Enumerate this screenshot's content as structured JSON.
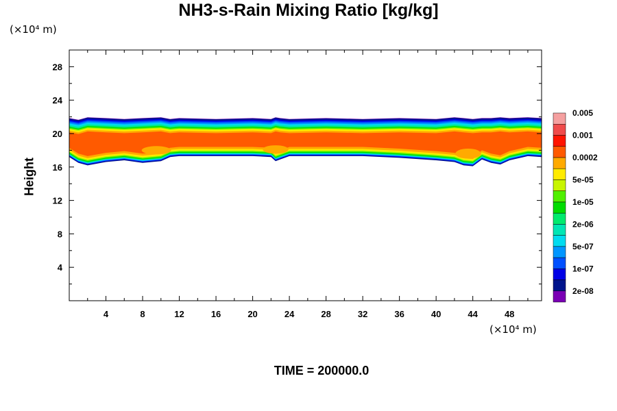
{
  "chart_data": {
    "type": "heatmap",
    "title": "NH3-s-Rain Mixing Ratio [kg/kg]",
    "ylabel": "Height",
    "xlabel": "",
    "x_unit": "(×10⁴ m)",
    "y_unit": "(×10⁴ m)",
    "xlim": [
      0,
      51.5
    ],
    "ylim": [
      0,
      30
    ],
    "x_ticks": [
      4,
      8,
      12,
      16,
      20,
      24,
      28,
      32,
      36,
      40,
      44,
      48
    ],
    "y_ticks": [
      4,
      8,
      12,
      16,
      20,
      24,
      28
    ],
    "colorbar": {
      "levels": [
        "2e-08",
        "1e-07",
        "5e-07",
        "2e-06",
        "1e-05",
        "5e-05",
        "0.0002",
        "0.001",
        "0.005"
      ],
      "colors": [
        "#7a00b4",
        "#00148c",
        "#0000e6",
        "#0050ff",
        "#0096ff",
        "#00dcf0",
        "#00e6b4",
        "#00eb6e",
        "#00dc00",
        "#50f000",
        "#c8f500",
        "#ffeb00",
        "#ffaa00",
        "#ff5a00",
        "#ff1400",
        "#f04b4b",
        "#f5a0a0"
      ]
    },
    "layer": {
      "x": [
        0,
        1,
        2,
        4,
        6,
        8,
        10,
        11,
        12,
        16,
        20,
        22,
        22.5,
        23,
        24,
        28,
        32,
        36,
        40,
        42,
        43,
        44,
        45,
        46,
        47,
        48,
        50,
        51.5
      ],
      "top": [
        21.8,
        21.6,
        21.9,
        21.8,
        21.7,
        21.8,
        21.9,
        21.7,
        21.8,
        21.7,
        21.8,
        21.7,
        21.9,
        21.8,
        21.7,
        21.8,
        21.7,
        21.8,
        21.7,
        21.9,
        21.8,
        21.7,
        21.8,
        21.8,
        21.9,
        21.8,
        21.9,
        21.8
      ],
      "bottom": [
        17.3,
        16.6,
        16.3,
        16.7,
        16.9,
        16.6,
        16.8,
        17.3,
        17.4,
        17.4,
        17.4,
        17.3,
        16.8,
        17.0,
        17.4,
        17.4,
        17.4,
        17.2,
        16.9,
        16.7,
        16.3,
        16.2,
        17.0,
        16.6,
        16.4,
        16.9,
        17.4,
        17.3
      ]
    },
    "time_label": "TIME = 200000.0"
  },
  "colors": {
    "background": "#ffffff",
    "axes": "#000000"
  }
}
